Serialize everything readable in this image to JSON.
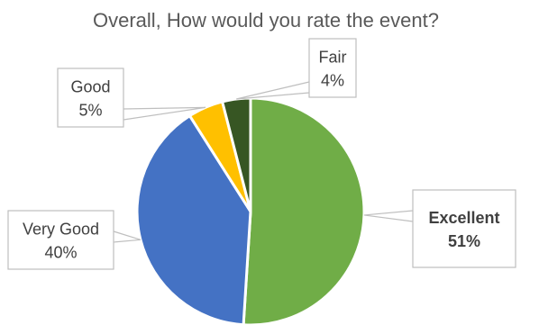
{
  "chart_data": {
    "type": "pie",
    "title": "Overall, How would you rate the event?",
    "slices": [
      {
        "label": "Excellent",
        "value": 51,
        "value_label": "51%",
        "color": "#70ad47",
        "emphasis": true
      },
      {
        "label": "Very Good",
        "value": 40,
        "value_label": "40%",
        "color": "#4472c4",
        "emphasis": false
      },
      {
        "label": "Good",
        "value": 5,
        "value_label": "5%",
        "color": "#ffc000",
        "emphasis": false
      },
      {
        "label": "Fair",
        "value": 4,
        "value_label": "4%",
        "color": "#375623",
        "emphasis": false
      }
    ],
    "start": "12 o'clock",
    "direction": "clockwise",
    "legend": "none",
    "data_labels": "callouts"
  }
}
